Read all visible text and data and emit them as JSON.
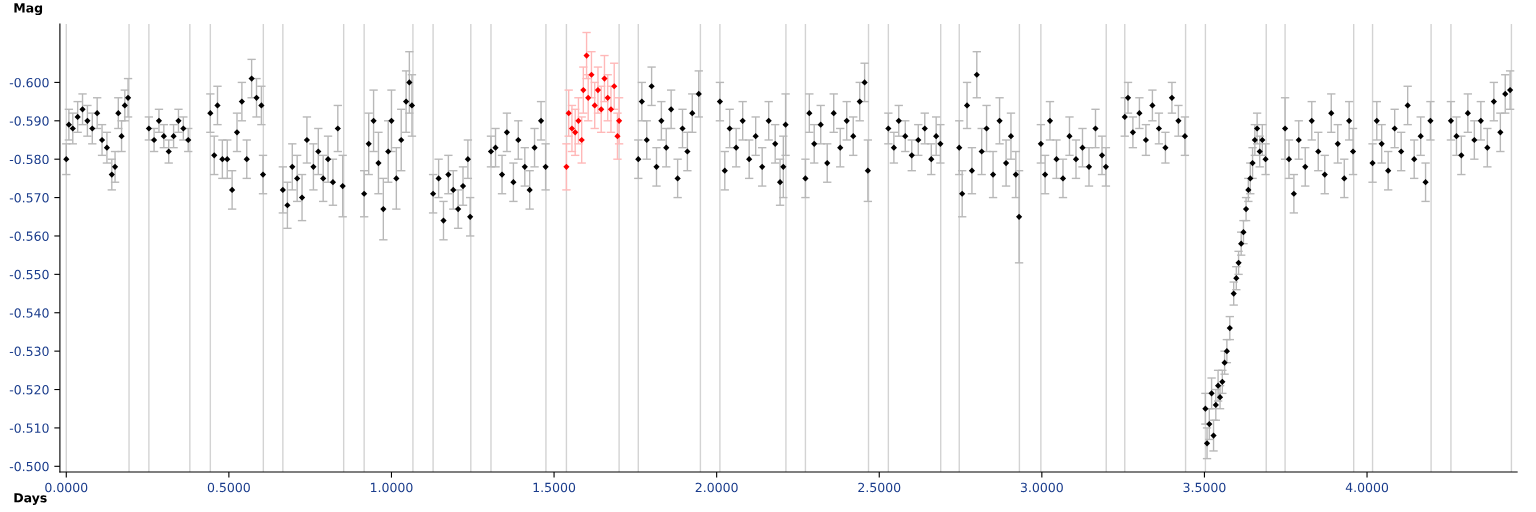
{
  "chart_data": {
    "type": "scatter",
    "xlabel": "Days",
    "ylabel": "Mag",
    "xlim": [
      -0.0196,
      4.4615
    ],
    "ylim": [
      -0.4985,
      -0.6152
    ],
    "marker": "diamond",
    "xticks": [
      {
        "value": 0,
        "label": "0.0000"
      },
      {
        "value": 0.5,
        "label": "0.5000"
      },
      {
        "value": 1,
        "label": "1.0000"
      },
      {
        "value": 1.5,
        "label": "1.5000"
      },
      {
        "value": 2,
        "label": "2.0000"
      },
      {
        "value": 2.5,
        "label": "2.5000"
      },
      {
        "value": 3,
        "label": "3.0000"
      },
      {
        "value": 3.5,
        "label": "3.5000"
      },
      {
        "value": 4,
        "label": "4.0000"
      }
    ],
    "yticks": [
      {
        "value": -0.5,
        "label": "-0.500"
      },
      {
        "value": -0.51,
        "label": "-0.510"
      },
      {
        "value": -0.52,
        "label": "-0.520"
      },
      {
        "value": -0.53,
        "label": "-0.530"
      },
      {
        "value": -0.54,
        "label": "-0.540"
      },
      {
        "value": -0.55,
        "label": "-0.550"
      },
      {
        "value": -0.56,
        "label": "-0.560"
      },
      {
        "value": -0.57,
        "label": "-0.570"
      },
      {
        "value": -0.58,
        "label": "-0.580"
      },
      {
        "value": -0.59,
        "label": "-0.590"
      },
      {
        "value": -0.6,
        "label": "-0.600"
      }
    ],
    "ref_lines": [
      {
        "axis": "x",
        "value": 0.0,
        "color": "#d3d3d3"
      },
      {
        "axis": "x",
        "value": 0.193,
        "color": "#d3d3d3"
      },
      {
        "axis": "x",
        "value": 0.254,
        "color": "#d3d3d3"
      },
      {
        "axis": "x",
        "value": 0.38,
        "color": "#d3d3d3"
      },
      {
        "axis": "x",
        "value": 0.443,
        "color": "#d3d3d3"
      },
      {
        "axis": "x",
        "value": 0.606,
        "color": "#d3d3d3"
      },
      {
        "axis": "x",
        "value": 0.666,
        "color": "#d3d3d3"
      },
      {
        "axis": "x",
        "value": 0.853,
        "color": "#d3d3d3"
      },
      {
        "axis": "x",
        "value": 0.916,
        "color": "#d3d3d3"
      },
      {
        "axis": "x",
        "value": 1.066,
        "color": "#d3d3d3"
      },
      {
        "axis": "x",
        "value": 1.128,
        "color": "#d3d3d3"
      },
      {
        "axis": "x",
        "value": 1.244,
        "color": "#d3d3d3"
      },
      {
        "axis": "x",
        "value": 1.306,
        "color": "#d3d3d3"
      },
      {
        "axis": "x",
        "value": 1.475,
        "color": "#d3d3d3"
      },
      {
        "axis": "x",
        "value": 1.538,
        "color": "#d3d3d3"
      },
      {
        "axis": "x",
        "value": 1.7,
        "color": "#d3d3d3"
      },
      {
        "axis": "x",
        "value": 1.759,
        "color": "#d3d3d3"
      },
      {
        "axis": "x",
        "value": 1.95,
        "color": "#d3d3d3"
      },
      {
        "axis": "x",
        "value": 2.01,
        "color": "#d3d3d3"
      },
      {
        "axis": "x",
        "value": 2.213,
        "color": "#d3d3d3"
      },
      {
        "axis": "x",
        "value": 2.273,
        "color": "#d3d3d3"
      },
      {
        "axis": "x",
        "value": 2.467,
        "color": "#d3d3d3"
      },
      {
        "axis": "x",
        "value": 2.528,
        "color": "#d3d3d3"
      },
      {
        "axis": "x",
        "value": 2.689,
        "color": "#d3d3d3"
      },
      {
        "axis": "x",
        "value": 2.746,
        "color": "#d3d3d3"
      },
      {
        "axis": "x",
        "value": 2.931,
        "color": "#d3d3d3"
      },
      {
        "axis": "x",
        "value": 2.997,
        "color": "#d3d3d3"
      },
      {
        "axis": "x",
        "value": 3.198,
        "color": "#d3d3d3"
      },
      {
        "axis": "x",
        "value": 3.255,
        "color": "#d3d3d3"
      },
      {
        "axis": "x",
        "value": 3.442,
        "color": "#d3d3d3"
      },
      {
        "axis": "x",
        "value": 3.503,
        "color": "#d3d3d3"
      },
      {
        "axis": "x",
        "value": 3.69,
        "color": "#d3d3d3"
      },
      {
        "axis": "x",
        "value": 3.748,
        "color": "#d3d3d3"
      },
      {
        "axis": "x",
        "value": 3.959,
        "color": "#d3d3d3"
      },
      {
        "axis": "x",
        "value": 4.017,
        "color": "#d3d3d3"
      },
      {
        "axis": "x",
        "value": 4.197,
        "color": "#d3d3d3"
      },
      {
        "axis": "x",
        "value": 4.258,
        "color": "#d3d3d3"
      },
      {
        "axis": "x",
        "value": 4.444,
        "color": "#d3d3d3"
      }
    ],
    "series": [
      {
        "color": "#000000",
        "x": [
          0.0,
          0.008,
          0.02,
          0.035,
          0.05,
          0.065,
          0.08,
          0.095,
          0.11,
          0.125,
          0.14,
          0.15,
          0.16,
          0.17,
          0.18,
          0.19
        ],
        "values": [
          -0.58,
          -0.589,
          -0.588,
          -0.591,
          -0.593,
          -0.59,
          -0.588,
          -0.592,
          -0.585,
          -0.583,
          -0.576,
          -0.578,
          -0.592,
          -0.586,
          -0.594,
          -0.596
        ],
        "errors": [
          0.004,
          0.004,
          0.004,
          0.004,
          0.004,
          0.004,
          0.004,
          0.004,
          0.004,
          0.004,
          0.004,
          0.004,
          0.004,
          0.004,
          0.004,
          0.005
        ]
      },
      {
        "color": "#000000",
        "x": [
          0.254,
          0.27,
          0.285,
          0.3,
          0.315,
          0.33,
          0.345,
          0.36,
          0.375
        ],
        "values": [
          -0.588,
          -0.585,
          -0.59,
          -0.586,
          -0.582,
          -0.586,
          -0.59,
          -0.588,
          -0.585
        ],
        "errors": [
          0.003,
          0.003,
          0.003,
          0.003,
          0.003,
          0.003,
          0.003,
          0.003,
          0.003
        ]
      },
      {
        "color": "#000000",
        "x": [
          0.443,
          0.455,
          0.465,
          0.48,
          0.495,
          0.51,
          0.525,
          0.54,
          0.555,
          0.57,
          0.585,
          0.6,
          0.605
        ],
        "values": [
          -0.592,
          -0.581,
          -0.594,
          -0.58,
          -0.58,
          -0.572,
          -0.587,
          -0.595,
          -0.58,
          -0.601,
          -0.596,
          -0.594,
          -0.576
        ],
        "errors": [
          0.005,
          0.005,
          0.005,
          0.005,
          0.005,
          0.005,
          0.005,
          0.005,
          0.005,
          0.005,
          0.005,
          0.005,
          0.005
        ]
      },
      {
        "color": "#000000",
        "x": [
          0.666,
          0.68,
          0.695,
          0.71,
          0.725,
          0.74,
          0.76,
          0.775,
          0.79,
          0.805,
          0.82,
          0.835,
          0.85
        ],
        "values": [
          -0.572,
          -0.568,
          -0.578,
          -0.575,
          -0.57,
          -0.585,
          -0.578,
          -0.582,
          -0.575,
          -0.58,
          -0.574,
          -0.588,
          -0.573
        ],
        "errors": [
          0.006,
          0.006,
          0.006,
          0.006,
          0.006,
          0.006,
          0.006,
          0.006,
          0.006,
          0.006,
          0.006,
          0.006,
          0.008
        ]
      },
      {
        "color": "#000000",
        "x": [
          0.916,
          0.93,
          0.945,
          0.96,
          0.975,
          0.99,
          1.0,
          1.015,
          1.03,
          1.045,
          1.055,
          1.063
        ],
        "values": [
          -0.571,
          -0.584,
          -0.59,
          -0.579,
          -0.567,
          -0.582,
          -0.59,
          -0.575,
          -0.585,
          -0.595,
          -0.6,
          -0.594
        ],
        "errors": [
          0.006,
          0.008,
          0.008,
          0.008,
          0.008,
          0.008,
          0.008,
          0.008,
          0.008,
          0.008,
          0.008,
          0.008
        ]
      },
      {
        "color": "#000000",
        "x": [
          1.128,
          1.145,
          1.16,
          1.175,
          1.19,
          1.205,
          1.22,
          1.235,
          1.242
        ],
        "values": [
          -0.571,
          -0.575,
          -0.564,
          -0.576,
          -0.572,
          -0.567,
          -0.573,
          -0.58,
          -0.565
        ],
        "errors": [
          0.005,
          0.005,
          0.005,
          0.005,
          0.005,
          0.005,
          0.005,
          0.005,
          0.005
        ]
      },
      {
        "color": "#000000",
        "x": [
          1.306,
          1.32,
          1.34,
          1.355,
          1.375,
          1.39,
          1.41,
          1.425,
          1.44,
          1.46,
          1.474
        ],
        "values": [
          -0.582,
          -0.583,
          -0.576,
          -0.587,
          -0.574,
          -0.585,
          -0.578,
          -0.572,
          -0.583,
          -0.59,
          -0.578
        ],
        "errors": [
          0.004,
          0.005,
          0.005,
          0.005,
          0.005,
          0.005,
          0.005,
          0.005,
          0.005,
          0.005,
          0.006
        ]
      },
      {
        "color": "#ff0000",
        "x": [
          1.538,
          1.545,
          1.555,
          1.565,
          1.575,
          1.585,
          1.59,
          1.6,
          1.605,
          1.615,
          1.625,
          1.635,
          1.645,
          1.655,
          1.665,
          1.675,
          1.685,
          1.695,
          1.7
        ],
        "values": [
          -0.578,
          -0.592,
          -0.588,
          -0.587,
          -0.59,
          -0.585,
          -0.598,
          -0.607,
          -0.596,
          -0.602,
          -0.594,
          -0.598,
          -0.593,
          -0.601,
          -0.596,
          -0.593,
          -0.599,
          -0.586,
          -0.59
        ],
        "errors": [
          0.006,
          0.006,
          0.006,
          0.006,
          0.006,
          0.006,
          0.006,
          0.006,
          0.006,
          0.006,
          0.006,
          0.006,
          0.006,
          0.006,
          0.006,
          0.006,
          0.006,
          0.006,
          0.006
        ]
      },
      {
        "color": "#000000",
        "x": [
          1.759,
          1.77,
          1.785,
          1.8,
          1.815,
          1.83,
          1.845,
          1.86,
          1.88,
          1.895,
          1.91,
          1.925,
          1.945
        ],
        "values": [
          -0.58,
          -0.595,
          -0.585,
          -0.599,
          -0.578,
          -0.59,
          -0.583,
          -0.593,
          -0.575,
          -0.588,
          -0.582,
          -0.592,
          -0.597
        ],
        "errors": [
          0.005,
          0.005,
          0.005,
          0.005,
          0.005,
          0.005,
          0.005,
          0.005,
          0.005,
          0.005,
          0.005,
          0.005,
          0.006
        ]
      },
      {
        "color": "#000000",
        "x": [
          2.01,
          2.025,
          2.04,
          2.06,
          2.08,
          2.1,
          2.12,
          2.14,
          2.16,
          2.18,
          2.195,
          2.205,
          2.212
        ],
        "values": [
          -0.595,
          -0.577,
          -0.588,
          -0.583,
          -0.59,
          -0.58,
          -0.586,
          -0.578,
          -0.59,
          -0.584,
          -0.574,
          -0.578,
          -0.589
        ],
        "errors": [
          0.005,
          0.005,
          0.005,
          0.005,
          0.005,
          0.005,
          0.005,
          0.005,
          0.005,
          0.005,
          0.006,
          0.008,
          0.008
        ]
      },
      {
        "color": "#000000",
        "x": [
          2.273,
          2.285,
          2.3,
          2.32,
          2.34,
          2.36,
          2.38,
          2.4,
          2.42,
          2.44,
          2.455,
          2.465
        ],
        "values": [
          -0.575,
          -0.592,
          -0.584,
          -0.589,
          -0.579,
          -0.592,
          -0.583,
          -0.59,
          -0.586,
          -0.595,
          -0.6,
          -0.577
        ],
        "errors": [
          0.005,
          0.005,
          0.005,
          0.005,
          0.005,
          0.005,
          0.005,
          0.005,
          0.005,
          0.005,
          0.005,
          0.008
        ]
      },
      {
        "color": "#000000",
        "x": [
          2.528,
          2.545,
          2.56,
          2.58,
          2.6,
          2.62,
          2.64,
          2.66,
          2.675,
          2.688
        ],
        "values": [
          -0.588,
          -0.583,
          -0.59,
          -0.586,
          -0.581,
          -0.585,
          -0.588,
          -0.58,
          -0.586,
          -0.584
        ],
        "errors": [
          0.004,
          0.004,
          0.004,
          0.004,
          0.004,
          0.004,
          0.004,
          0.004,
          0.005,
          0.005
        ]
      },
      {
        "color": "#000000",
        "x": [
          2.746,
          2.755,
          2.77,
          2.785,
          2.8,
          2.815,
          2.83,
          2.85,
          2.87,
          2.89,
          2.905,
          2.92,
          2.93
        ],
        "values": [
          -0.583,
          -0.571,
          -0.594,
          -0.577,
          -0.602,
          -0.582,
          -0.588,
          -0.576,
          -0.59,
          -0.579,
          -0.586,
          -0.576,
          -0.565
        ],
        "errors": [
          0.007,
          0.006,
          0.006,
          0.006,
          0.006,
          0.006,
          0.006,
          0.006,
          0.006,
          0.006,
          0.006,
          0.006,
          0.012
        ]
      },
      {
        "color": "#000000",
        "x": [
          2.997,
          3.01,
          3.025,
          3.045,
          3.065,
          3.085,
          3.105,
          3.125,
          3.145,
          3.165,
          3.185,
          3.197
        ],
        "values": [
          -0.584,
          -0.576,
          -0.59,
          -0.58,
          -0.575,
          -0.586,
          -0.58,
          -0.583,
          -0.578,
          -0.588,
          -0.581,
          -0.578
        ],
        "errors": [
          0.005,
          0.005,
          0.005,
          0.005,
          0.005,
          0.005,
          0.005,
          0.005,
          0.005,
          0.005,
          0.005,
          0.005
        ]
      },
      {
        "color": "#000000",
        "x": [
          3.255,
          3.265,
          3.28,
          3.3,
          3.32,
          3.34,
          3.36,
          3.38,
          3.4,
          3.42,
          3.44
        ],
        "values": [
          -0.591,
          -0.596,
          -0.587,
          -0.592,
          -0.585,
          -0.594,
          -0.588,
          -0.583,
          -0.596,
          -0.59,
          -0.586
        ],
        "errors": [
          0.005,
          0.004,
          0.004,
          0.004,
          0.004,
          0.004,
          0.004,
          0.004,
          0.004,
          0.004,
          0.005
        ]
      },
      {
        "color": "#000000",
        "x": [
          3.503,
          3.508,
          3.515,
          3.522,
          3.528,
          3.535,
          3.542,
          3.548,
          3.555,
          3.562,
          3.569,
          3.578,
          3.59,
          3.598,
          3.605,
          3.613,
          3.62,
          3.628,
          3.635,
          3.641,
          3.648,
          3.655,
          3.662,
          3.67,
          3.678,
          3.688
        ],
        "values": [
          -0.515,
          -0.506,
          -0.511,
          -0.519,
          -0.508,
          -0.516,
          -0.521,
          -0.518,
          -0.522,
          -0.527,
          -0.53,
          -0.536,
          -0.545,
          -0.549,
          -0.553,
          -0.558,
          -0.561,
          -0.567,
          -0.572,
          -0.575,
          -0.579,
          -0.585,
          -0.588,
          -0.582,
          -0.585,
          -0.58
        ],
        "errors": [
          0.004,
          0.004,
          0.004,
          0.004,
          0.004,
          0.004,
          0.004,
          0.003,
          0.003,
          0.003,
          0.003,
          0.003,
          0.003,
          0.003,
          0.003,
          0.003,
          0.003,
          0.003,
          0.003,
          0.004,
          0.004,
          0.004,
          0.004,
          0.004,
          0.004,
          0.004
        ]
      },
      {
        "color": "#000000",
        "x": [
          3.748,
          3.76,
          3.775,
          3.79,
          3.81,
          3.83,
          3.85,
          3.87,
          3.89,
          3.91,
          3.93,
          3.945,
          3.957
        ],
        "values": [
          -0.588,
          -0.58,
          -0.571,
          -0.585,
          -0.578,
          -0.59,
          -0.582,
          -0.576,
          -0.592,
          -0.584,
          -0.575,
          -0.59,
          -0.582
        ],
        "errors": [
          0.008,
          0.005,
          0.005,
          0.005,
          0.005,
          0.005,
          0.005,
          0.005,
          0.005,
          0.005,
          0.005,
          0.005,
          0.006
        ]
      },
      {
        "color": "#000000",
        "x": [
          4.017,
          4.03,
          4.045,
          4.065,
          4.085,
          4.105,
          4.125,
          4.145,
          4.165,
          4.18,
          4.195
        ],
        "values": [
          -0.579,
          -0.59,
          -0.584,
          -0.577,
          -0.588,
          -0.582,
          -0.594,
          -0.58,
          -0.586,
          -0.574,
          -0.59
        ],
        "errors": [
          0.005,
          0.005,
          0.005,
          0.005,
          0.005,
          0.005,
          0.005,
          0.005,
          0.005,
          0.005,
          0.005
        ]
      },
      {
        "color": "#000000",
        "x": [
          4.258,
          4.275,
          4.29,
          4.31,
          4.33,
          4.35,
          4.37,
          4.39,
          4.41,
          4.425,
          4.44
        ],
        "values": [
          -0.59,
          -0.586,
          -0.581,
          -0.592,
          -0.585,
          -0.59,
          -0.583,
          -0.595,
          -0.587,
          -0.597,
          -0.598
        ],
        "errors": [
          0.005,
          0.005,
          0.005,
          0.005,
          0.005,
          0.005,
          0.005,
          0.005,
          0.005,
          0.005,
          0.005
        ]
      }
    ]
  }
}
